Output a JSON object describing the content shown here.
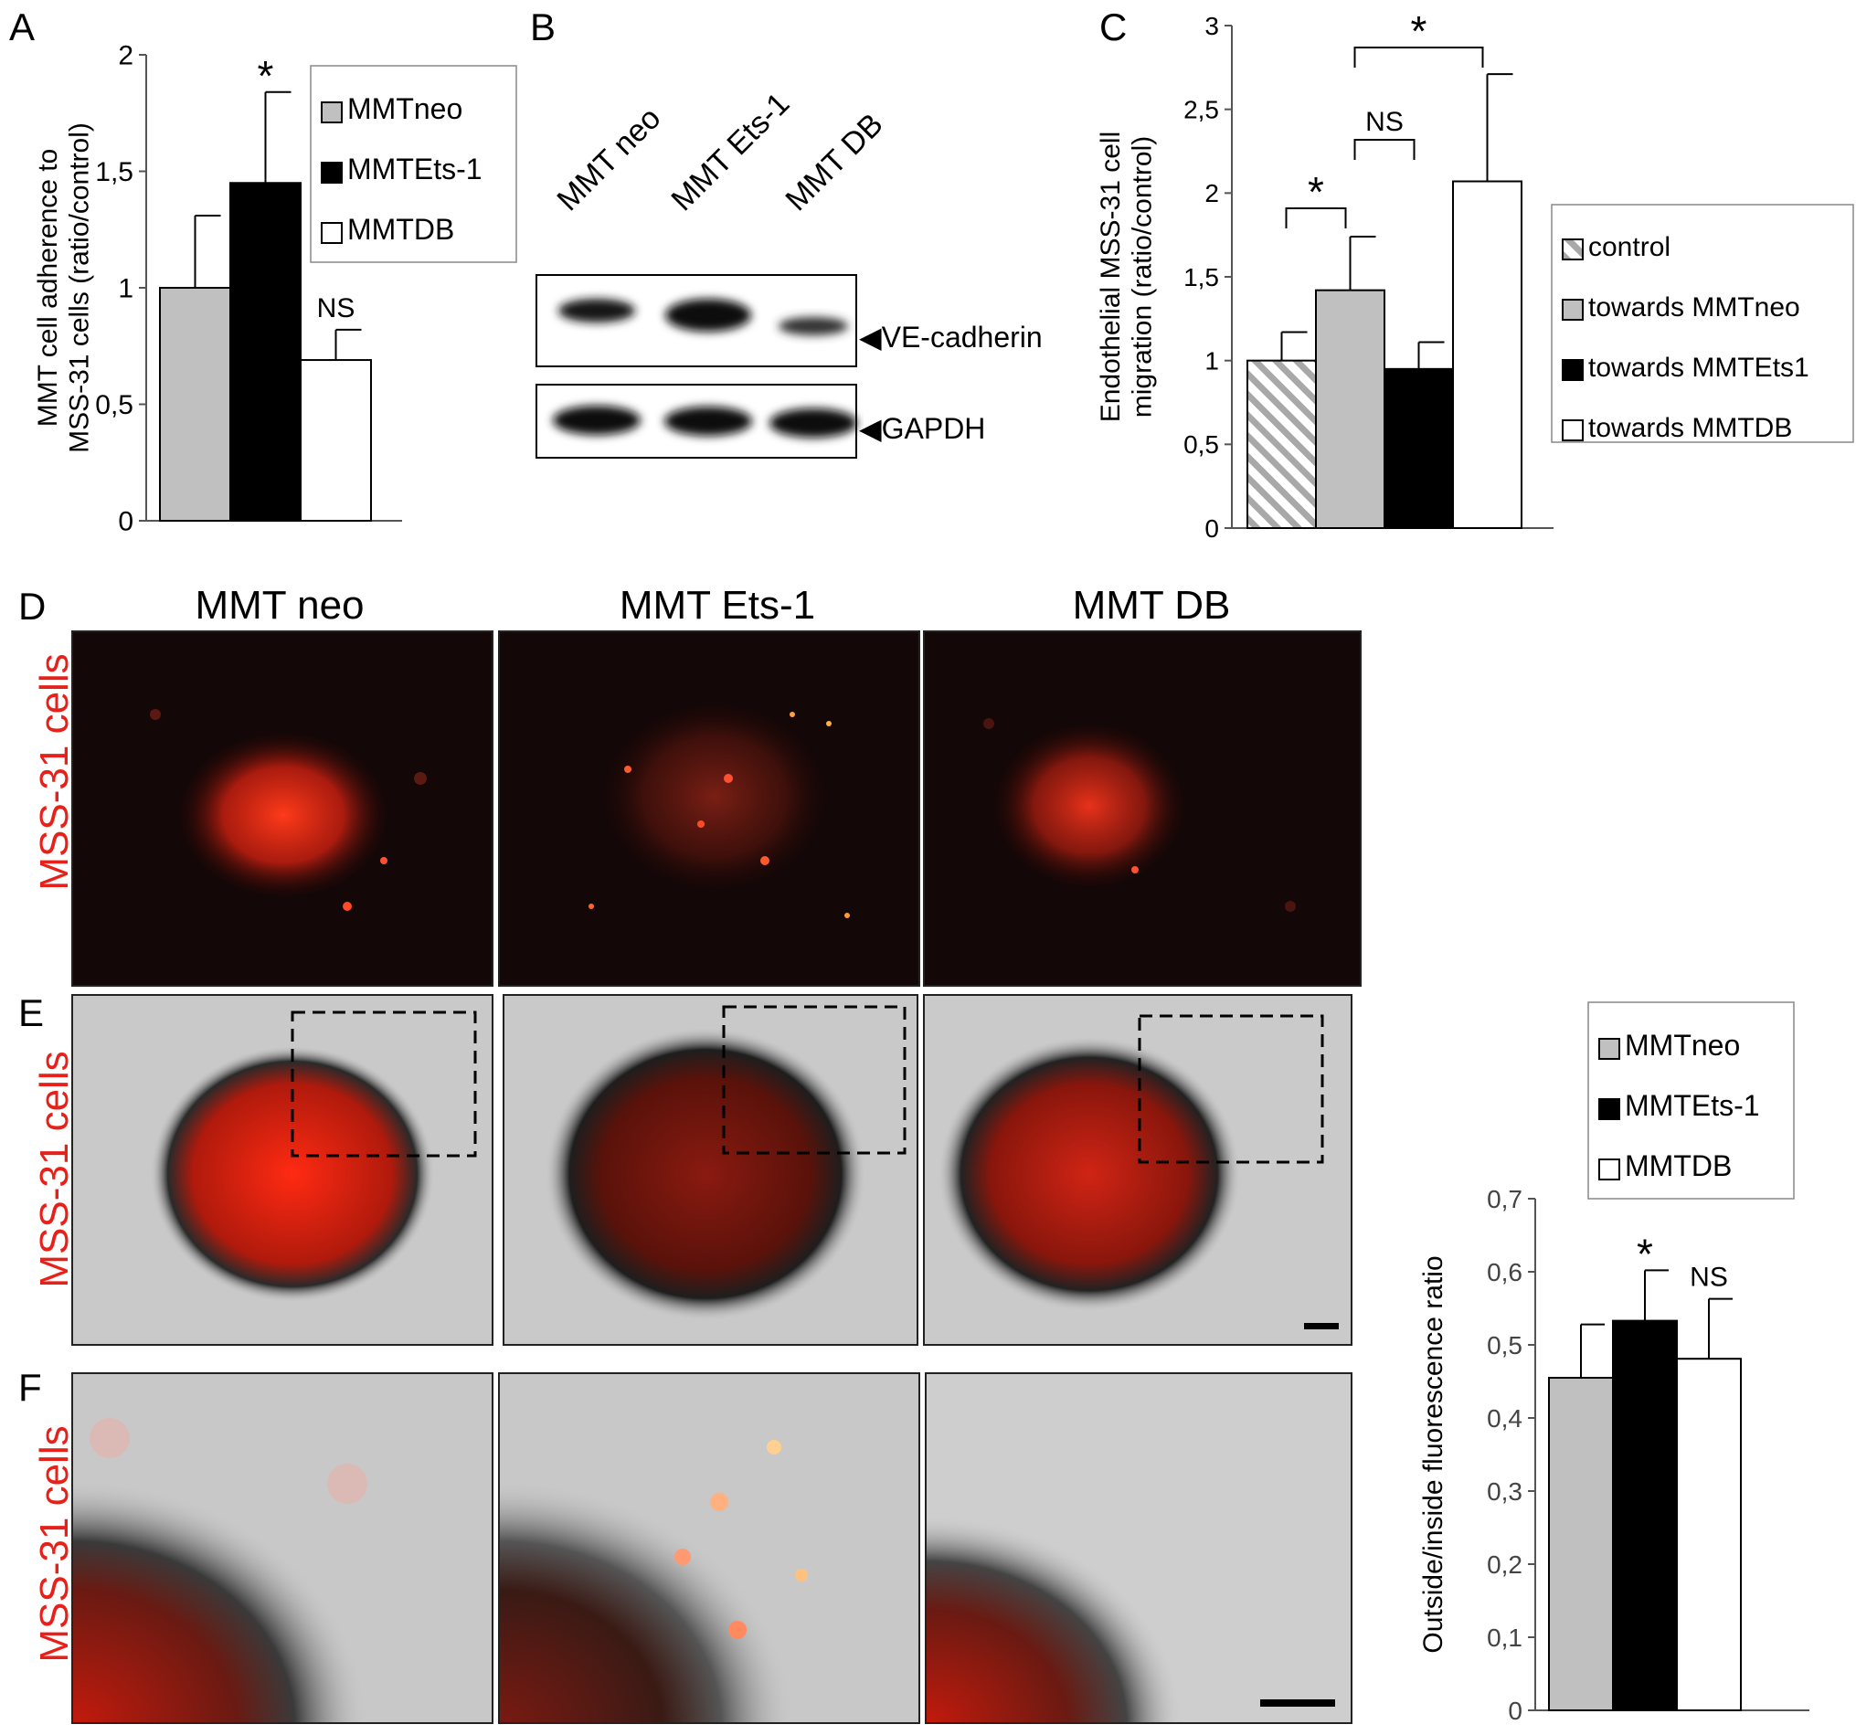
{
  "panels": {
    "A": {
      "letter": "A"
    },
    "B": {
      "letter": "B"
    },
    "C": {
      "letter": "C"
    },
    "D": {
      "letter": "D"
    },
    "E": {
      "letter": "E"
    },
    "F": {
      "letter": "F"
    }
  },
  "chart_data": [
    {
      "id": "A",
      "type": "bar",
      "categories": [
        "MMTneo",
        "MMTEts-1",
        "MMTDB"
      ],
      "values": [
        1.0,
        1.45,
        0.69
      ],
      "errors": [
        0.31,
        0.39,
        0.13
      ],
      "bar_colors": [
        "#c0c0c0",
        "#000000",
        "#ffffff"
      ],
      "annotations": [
        "",
        "*",
        "NS"
      ],
      "ylabel_lines": [
        "MMT cell adherence to",
        "MSS-31 cells (ratio/control)"
      ],
      "ylim": [
        0,
        2
      ],
      "yticks": [
        "0",
        "0,5",
        "1",
        "1,5",
        "2"
      ],
      "ytick_values": [
        0,
        0.5,
        1,
        1.5,
        2
      ],
      "legend": [
        "MMTneo",
        "MMTEts-1",
        "MMTDB"
      ],
      "legend_placement": "top-right",
      "grid": false
    },
    {
      "id": "C",
      "type": "bar",
      "categories": [
        "control",
        "towards MMTneo",
        "towards MMTEts1",
        "towards MMTDB"
      ],
      "values": [
        1.0,
        1.42,
        0.95,
        2.07
      ],
      "errors": [
        0.17,
        0.32,
        0.16,
        0.64
      ],
      "bar_colors": [
        "hatch",
        "#c0c0c0",
        "#000000",
        "#ffffff"
      ],
      "ylabel_lines": [
        "Endothelial MSS-31 cell",
        "migration (ratio/control)"
      ],
      "ylim": [
        0,
        3
      ],
      "yticks": [
        "0",
        "0,5",
        "1",
        "1,5",
        "2",
        "2,5",
        "3"
      ],
      "ytick_values": [
        0,
        0.5,
        1,
        1.5,
        2,
        2.5,
        3
      ],
      "legend": [
        "control",
        "towards  MMTneo",
        "towards  MMTEts1",
        "towards  MMTDB"
      ],
      "legend_placement": "right",
      "comparisons": [
        {
          "from": 0,
          "to": 1,
          "label": "*"
        },
        {
          "from": 1,
          "to": 2,
          "label": "NS"
        },
        {
          "from": 1,
          "to": 3,
          "label": "*"
        }
      ],
      "grid": false
    },
    {
      "id": "G",
      "type": "bar",
      "categories": [
        "MMTneo",
        "MMTEts-1",
        "MMTDB"
      ],
      "values": [
        0.455,
        0.533,
        0.481
      ],
      "errors": [
        0.073,
        0.069,
        0.082
      ],
      "bar_colors": [
        "#c0c0c0",
        "#000000",
        "#ffffff"
      ],
      "annotations": [
        "",
        "*",
        "NS"
      ],
      "ylabel_lines": [
        "Outside/inside fluorescence ratio"
      ],
      "ylim": [
        0,
        0.7
      ],
      "yticks": [
        "0",
        "0,1",
        "0,2",
        "0,3",
        "0,4",
        "0,5",
        "0,6",
        "0,7"
      ],
      "ytick_values": [
        0,
        0.1,
        0.2,
        0.3,
        0.4,
        0.5,
        0.6,
        0.7
      ],
      "legend": [
        "MMTneo",
        "MMTEts-1",
        "MMTDB"
      ],
      "legend_placement": "top",
      "grid": false
    }
  ],
  "blot": {
    "lanes": [
      "MMT neo",
      "MMT Ets-1",
      "MMT DB"
    ],
    "bands": [
      "VE-cadherin",
      "GAPDH"
    ]
  },
  "microscopy": {
    "columns": [
      "MMT neo",
      "MMT Ets-1",
      "MMT DB"
    ],
    "row_label": "MSS-31 cells",
    "accent_color": "#e8201a"
  }
}
